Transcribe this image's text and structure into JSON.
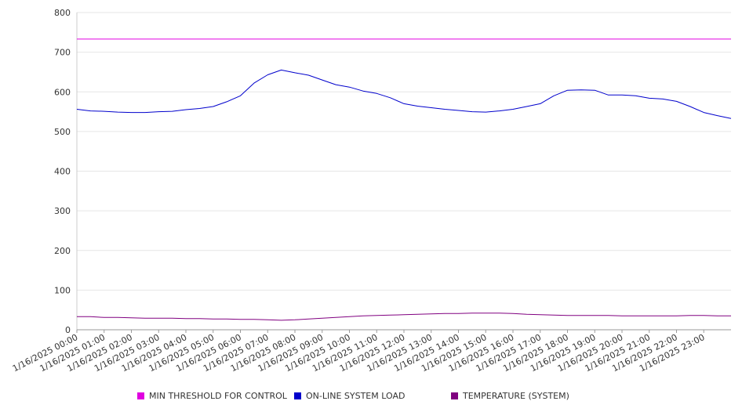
{
  "chart_data": {
    "type": "line",
    "ylim": [
      0,
      800
    ],
    "y_ticks": [
      0,
      100,
      200,
      300,
      400,
      500,
      600,
      700,
      800
    ],
    "x_tick_labels": [
      "1/16/2025 00:00",
      "1/16/2025 01:00",
      "1/16/2025 02:00",
      "1/16/2025 03:00",
      "1/16/2025 04:00",
      "1/16/2025 05:00",
      "1/16/2025 06:00",
      "1/16/2025 07:00",
      "1/16/2025 08:00",
      "1/16/2025 09:00",
      "1/16/2025 10:00",
      "1/16/2025 11:00",
      "1/16/2025 12:00",
      "1/16/2025 13:00",
      "1/16/2025 14:00",
      "1/16/2025 15:00",
      "1/16/2025 16:00",
      "1/16/2025 17:00",
      "1/16/2025 18:00",
      "1/16/2025 19:00",
      "1/16/2025 20:00",
      "1/16/2025 21:00",
      "1/16/2025 22:00",
      "1/16/2025 23:00"
    ],
    "x_hours": [
      0,
      0.5,
      1,
      1.5,
      2,
      2.5,
      3,
      3.5,
      4,
      4.5,
      5,
      5.5,
      6,
      6.5,
      7,
      7.5,
      8,
      8.5,
      9,
      9.5,
      10,
      10.5,
      11,
      11.5,
      12,
      12.5,
      13,
      13.5,
      14,
      14.5,
      15,
      15.5,
      16,
      16.5,
      17,
      17.5,
      18,
      18.5,
      19,
      19.5,
      20,
      20.5,
      21,
      21.5,
      22,
      22.5,
      23,
      23.5,
      24
    ],
    "series": [
      {
        "name": "MIN THRESHOLD FOR CONTROL",
        "color": "#e000e0",
        "values": [
          733,
          733,
          733,
          733,
          733,
          733,
          733,
          733,
          733,
          733,
          733,
          733,
          733,
          733,
          733,
          733,
          733,
          733,
          733,
          733,
          733,
          733,
          733,
          733,
          733,
          733,
          733,
          733,
          733,
          733,
          733,
          733,
          733,
          733,
          733,
          733,
          733,
          733,
          733,
          733,
          733,
          733,
          733,
          733,
          733,
          733,
          733,
          733,
          733
        ]
      },
      {
        "name": "ON-LINE SYSTEM LOAD",
        "color": "#0000cc",
        "values": [
          556,
          552,
          551,
          549,
          548,
          548,
          550,
          551,
          555,
          558,
          563,
          575,
          590,
          622,
          643,
          655,
          648,
          642,
          630,
          618,
          612,
          602,
          596,
          585,
          570,
          564,
          560,
          556,
          553,
          550,
          549,
          552,
          556,
          563,
          570,
          590,
          604,
          605,
          604,
          592,
          592,
          590,
          584,
          582,
          576,
          563,
          548,
          540,
          533
        ]
      },
      {
        "name": "TEMPERATURE (SYSTEM)",
        "color": "#800080",
        "values": [
          33,
          33,
          31,
          31,
          30,
          29,
          29,
          29,
          28,
          28,
          27,
          27,
          26,
          26,
          25,
          24,
          25,
          27,
          29,
          31,
          33,
          35,
          36,
          37,
          38,
          39,
          40,
          41,
          41,
          42,
          42,
          42,
          41,
          39,
          38,
          37,
          36,
          36,
          36,
          36,
          35,
          35,
          35,
          35,
          35,
          36,
          36,
          35,
          35
        ]
      }
    ],
    "grid": true,
    "legend_position": "bottom"
  }
}
